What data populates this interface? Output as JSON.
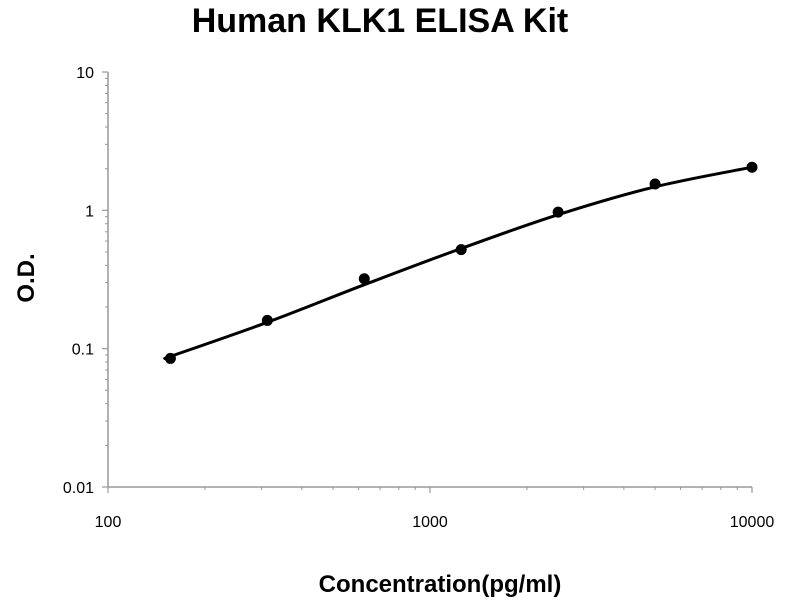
{
  "chart_data": {
    "type": "scatter",
    "title": "Human KLK1 ELISA Kit",
    "xlabel": "Concentration(pg/ml)",
    "ylabel": "O.D.",
    "x_scale": "log",
    "y_scale": "log",
    "xlim": [
      100,
      10000
    ],
    "ylim": [
      0.01,
      10
    ],
    "x_ticks": [
      100,
      1000,
      10000
    ],
    "x_tick_labels": [
      "100",
      "1000",
      "10000"
    ],
    "y_ticks": [
      0.01,
      0.1,
      1,
      10
    ],
    "y_tick_labels": [
      "0.01",
      "0.1",
      "1",
      "10"
    ],
    "grid": false,
    "legend": "none",
    "series": [
      {
        "x": [
          156.25,
          312.5,
          625,
          1250,
          2500,
          5000,
          10000
        ],
        "y": [
          0.085,
          0.16,
          0.32,
          0.52,
          0.97,
          1.55,
          2.05
        ]
      }
    ],
    "fit_curve": {
      "x": [
        150,
        312.5,
        625,
        1250,
        2500,
        5000,
        10000
      ],
      "y": [
        0.085,
        0.155,
        0.29,
        0.53,
        0.93,
        1.48,
        2.05
      ]
    },
    "colors": {
      "line": "#000000",
      "marker": "#000000"
    }
  }
}
